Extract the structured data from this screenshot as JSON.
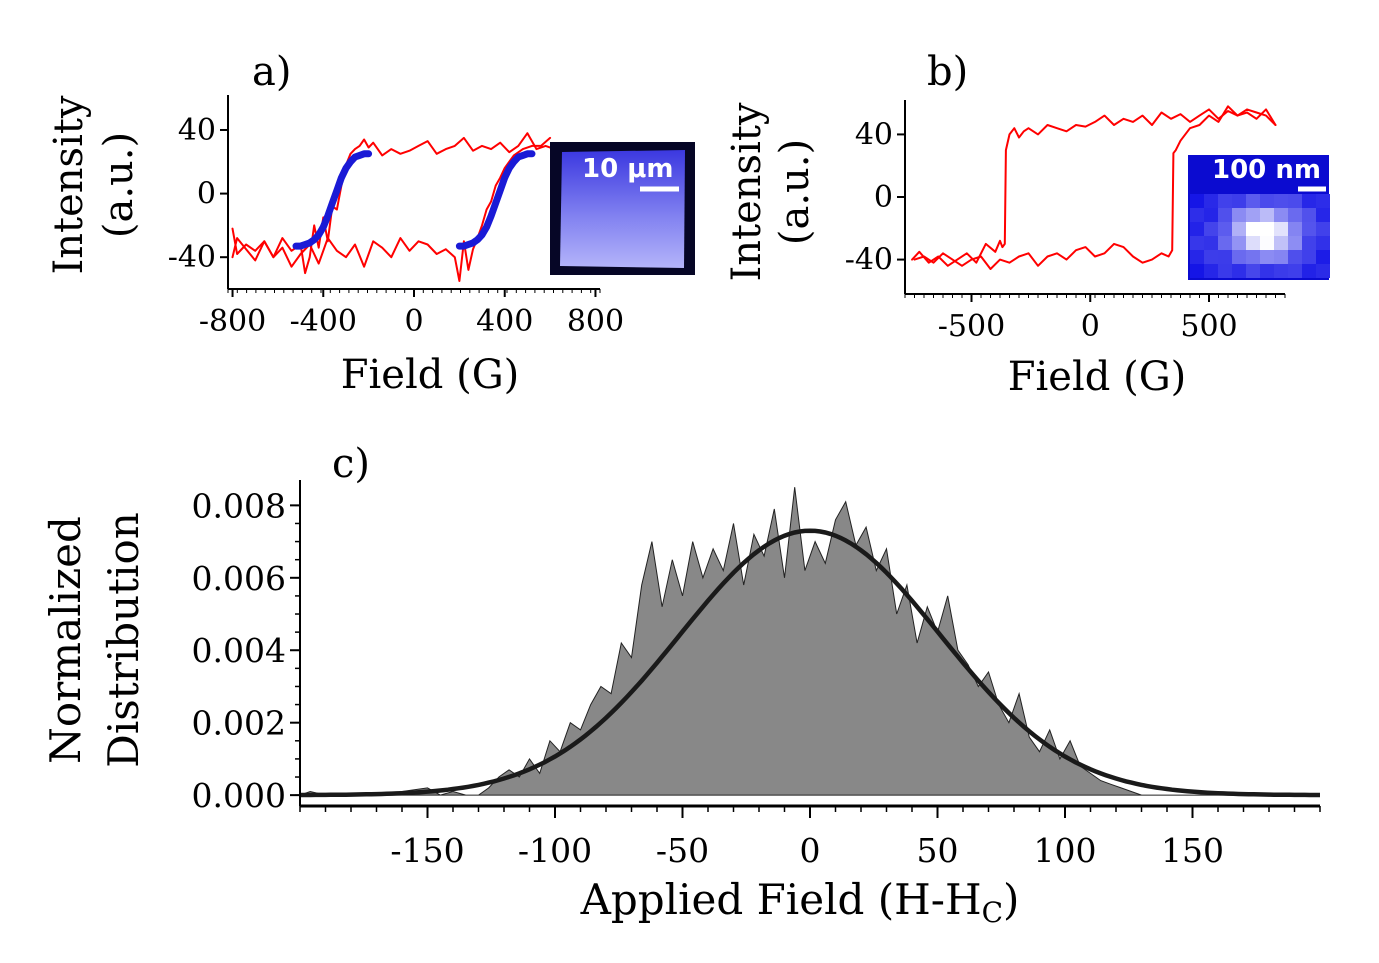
{
  "chart_data": [
    {
      "panel": "a)",
      "type": "line",
      "xlabel": "Field (G)",
      "ylabel": [
        "Intensity",
        "(a.u.)"
      ],
      "xlim": [
        -820,
        820
      ],
      "ylim": [
        -60,
        62
      ],
      "xticks": [
        -800,
        -400,
        0,
        400,
        800
      ],
      "yticks": [
        40,
        0,
        -40
      ],
      "series": [
        {
          "name": "hysteresis loop",
          "color": "#ff0000",
          "x": [
            -800,
            -780,
            -740,
            -700,
            -660,
            -620,
            -580,
            -540,
            -500,
            -480,
            -460,
            -440,
            -420,
            -400,
            -380,
            -360,
            -340,
            -320,
            -300,
            -280,
            -260,
            -240,
            -220,
            -200,
            -180,
            -140,
            -100,
            -60,
            -20,
            20,
            60,
            100,
            140,
            180,
            220,
            260,
            300,
            340,
            380,
            420,
            460,
            500,
            540,
            580,
            620
          ],
          "y": [
            -22,
            -38,
            -32,
            -36,
            -30,
            -40,
            -28,
            -36,
            -32,
            -50,
            -40,
            -20,
            -34,
            -15,
            -30,
            -8,
            -10,
            5,
            18,
            25,
            28,
            30,
            34,
            29,
            32,
            24,
            28,
            25,
            27,
            30,
            33,
            25,
            28,
            30,
            35,
            27,
            30,
            28,
            32,
            26,
            30,
            38,
            28,
            30,
            28
          ]
        },
        {
          "name": "hysteresis loop (return)",
          "color": "#ff0000",
          "x": [
            600,
            560,
            520,
            480,
            440,
            400,
            380,
            360,
            340,
            320,
            300,
            280,
            260,
            240,
            220,
            200,
            180,
            140,
            100,
            60,
            20,
            -20,
            -60,
            -100,
            -140,
            -180,
            -220,
            -260,
            -300,
            -340,
            -380,
            -420,
            -460,
            -500,
            -540,
            -580,
            -620,
            -660,
            -700,
            -740,
            -780,
            -800
          ],
          "y": [
            35,
            30,
            30,
            28,
            24,
            16,
            10,
            5,
            -5,
            -10,
            -20,
            -28,
            -35,
            -48,
            -30,
            -55,
            -40,
            -35,
            -38,
            -32,
            -30,
            -36,
            -28,
            -40,
            -34,
            -30,
            -46,
            -32,
            -40,
            -36,
            -28,
            -44,
            -32,
            -38,
            -46,
            -34,
            -40,
            -30,
            -42,
            -35,
            -28,
            -40
          ]
        },
        {
          "name": "fit left",
          "color": "#1a1ad6",
          "x": [
            -520,
            -500,
            -480,
            -460,
            -440,
            -420,
            -400,
            -380,
            -360,
            -340,
            -320,
            -300,
            -280,
            -260,
            -240,
            -220,
            -200
          ],
          "y": [
            -33,
            -33,
            -32,
            -31,
            -29,
            -26,
            -21,
            -14,
            -6,
            2,
            10,
            16,
            20,
            23,
            24,
            25,
            25
          ]
        },
        {
          "name": "fit right",
          "color": "#1a1ad6",
          "x": [
            200,
            220,
            240,
            260,
            280,
            300,
            320,
            340,
            360,
            380,
            400,
            420,
            440,
            460,
            480,
            500,
            520
          ],
          "y": [
            -33,
            -33,
            -32,
            -31,
            -29,
            -26,
            -21,
            -14,
            -6,
            2,
            10,
            16,
            20,
            23,
            24,
            25,
            25
          ]
        }
      ],
      "inset_scale_label": "10 μm"
    },
    {
      "panel": "b)",
      "type": "line",
      "xlabel": "Field (G)",
      "ylabel": [
        "Intensity",
        "(a.u.)"
      ],
      "xlim": [
        -780,
        820
      ],
      "ylim": [
        -62,
        62
      ],
      "xticks": [
        -500,
        0,
        500
      ],
      "yticks": [
        40,
        0,
        -40
      ],
      "series": [
        {
          "name": "hysteresis loop",
          "color": "#ff0000",
          "x": [
            -750,
            -720,
            -680,
            -640,
            -600,
            -560,
            -520,
            -480,
            -440,
            -400,
            -380,
            -370,
            -360,
            -355,
            -340,
            -320,
            -300,
            -280,
            -260,
            -220,
            -180,
            -140,
            -100,
            -60,
            -20,
            20,
            60,
            100,
            140,
            180,
            220,
            260,
            300,
            340,
            380,
            420,
            460,
            500,
            540,
            580,
            620,
            660,
            700,
            740,
            780
          ],
          "y": [
            -40,
            -35,
            -42,
            -38,
            -44,
            -40,
            -36,
            -42,
            -30,
            -35,
            -28,
            -32,
            -30,
            30,
            40,
            44,
            38,
            42,
            44,
            40,
            46,
            44,
            42,
            46,
            45,
            48,
            52,
            46,
            50,
            48,
            52,
            46,
            54,
            50,
            53,
            48,
            52,
            56,
            50,
            55,
            52,
            56,
            54,
            52,
            46
          ]
        },
        {
          "name": "hysteresis loop (return)",
          "color": "#ff0000",
          "x": [
            780,
            740,
            700,
            660,
            620,
            580,
            540,
            500,
            460,
            420,
            380,
            360,
            350,
            345,
            330,
            300,
            260,
            220,
            180,
            140,
            100,
            60,
            20,
            -20,
            -60,
            -100,
            -140,
            -180,
            -220,
            -260,
            -300,
            -340,
            -380,
            -420,
            -460,
            -500,
            -540,
            -580,
            -620,
            -660,
            -700,
            -740
          ],
          "y": [
            46,
            56,
            50,
            54,
            52,
            58,
            48,
            52,
            46,
            44,
            36,
            30,
            28,
            -34,
            -38,
            -36,
            -40,
            -42,
            -38,
            -32,
            -30,
            -36,
            -38,
            -32,
            -34,
            -40,
            -36,
            -38,
            -44,
            -36,
            -38,
            -42,
            -40,
            -46,
            -38,
            -40,
            -44,
            -40,
            -36,
            -42,
            -38,
            -40
          ]
        }
      ],
      "inset_scale_label": "100 nm"
    },
    {
      "panel": "c)",
      "type": "area",
      "xlabel": "Applied Field (H-H",
      "xlabel_sub": "C",
      "xlabel_end": ")",
      "ylabel": [
        "Normalized",
        "Distribution"
      ],
      "xlim": [
        -200,
        200
      ],
      "ylim": [
        -0.0003,
        0.0087
      ],
      "xticks": [
        -150,
        -100,
        -50,
        0,
        50,
        100,
        150
      ],
      "yticks": [
        "0.000",
        "0.002",
        "0.004",
        "0.006",
        "0.008"
      ],
      "series": [
        {
          "name": "histogram",
          "color": "#888888",
          "x": [
            -200,
            -196,
            -190,
            -180,
            -170,
            -160,
            -150,
            -145,
            -140,
            -135,
            -130,
            -126,
            -122,
            -118,
            -114,
            -110,
            -106,
            -102,
            -98,
            -94,
            -90,
            -86,
            -82,
            -78,
            -74,
            -70,
            -66,
            -62,
            -58,
            -54,
            -50,
            -46,
            -42,
            -38,
            -34,
            -30,
            -26,
            -22,
            -18,
            -14,
            -10,
            -6,
            -2,
            2,
            6,
            10,
            14,
            18,
            22,
            26,
            30,
            34,
            38,
            42,
            46,
            50,
            54,
            58,
            62,
            66,
            70,
            74,
            78,
            82,
            86,
            90,
            94,
            98,
            102,
            106,
            110,
            114,
            118,
            122,
            126,
            130,
            140,
            150,
            160,
            175,
            190,
            200
          ],
          "y": [
            0.0,
            0.0001,
            0.0,
            0.0,
            0.0,
            0.0001,
            0.0002,
            0.0,
            0.0001,
            0.0,
            0.0,
            0.0002,
            0.0005,
            0.0007,
            0.0005,
            0.001,
            0.0006,
            0.0015,
            0.0012,
            0.002,
            0.0018,
            0.0025,
            0.003,
            0.0028,
            0.0042,
            0.0038,
            0.0058,
            0.007,
            0.0052,
            0.0065,
            0.0055,
            0.007,
            0.006,
            0.0068,
            0.0062,
            0.0075,
            0.0058,
            0.0072,
            0.0066,
            0.0079,
            0.006,
            0.0085,
            0.0062,
            0.007,
            0.0064,
            0.0076,
            0.0081,
            0.0069,
            0.0074,
            0.0062,
            0.0068,
            0.005,
            0.0058,
            0.0042,
            0.0052,
            0.0045,
            0.0055,
            0.004,
            0.0036,
            0.003,
            0.0034,
            0.0025,
            0.002,
            0.0028,
            0.0016,
            0.0012,
            0.0018,
            0.001,
            0.0015,
            0.0008,
            0.0006,
            0.0004,
            0.0003,
            0.0002,
            0.0001,
            0.0,
            0.0,
            0.0,
            0.0,
            0.0,
            0.0,
            0.0
          ]
        },
        {
          "name": "gaussian fit",
          "color": "#1a1a1a",
          "amplitude": 0.0073,
          "mean": 0,
          "sigma": 51
        }
      ]
    }
  ]
}
